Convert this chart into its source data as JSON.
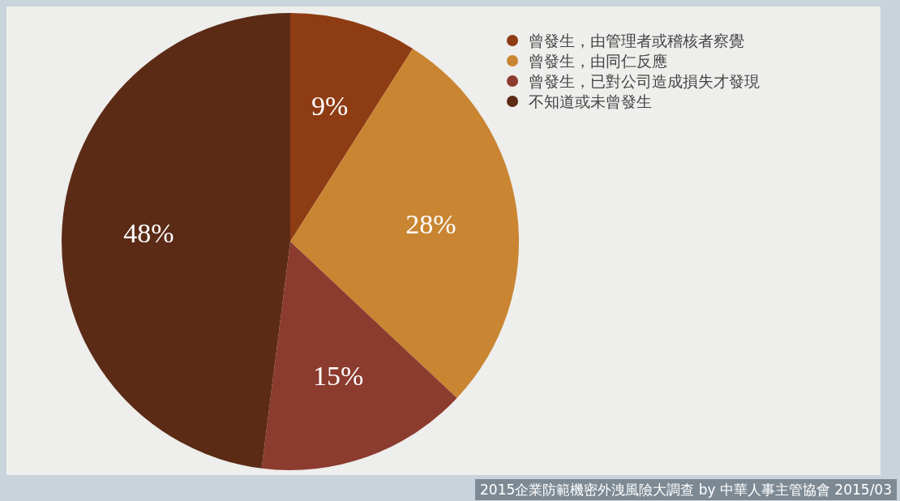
{
  "chart_data": {
    "type": "pie",
    "categories": [
      "曾發生，由管理者或稽核者察覺",
      "曾發生，由同仁反應",
      "曾發生，已對公司造成損失才發現",
      "不知道或未曾發生"
    ],
    "values": [
      9,
      28,
      15,
      48
    ],
    "colors": [
      "#8e3c14",
      "#c98532",
      "#8c3b2f",
      "#5b2b16"
    ],
    "value_labels": [
      "9%",
      "28%",
      "15%",
      "48%"
    ],
    "legend": "top right",
    "annotations": [
      "2015企業防範機密外洩風險大調查 by 中華人事主管協會 2015/03"
    ]
  }
}
